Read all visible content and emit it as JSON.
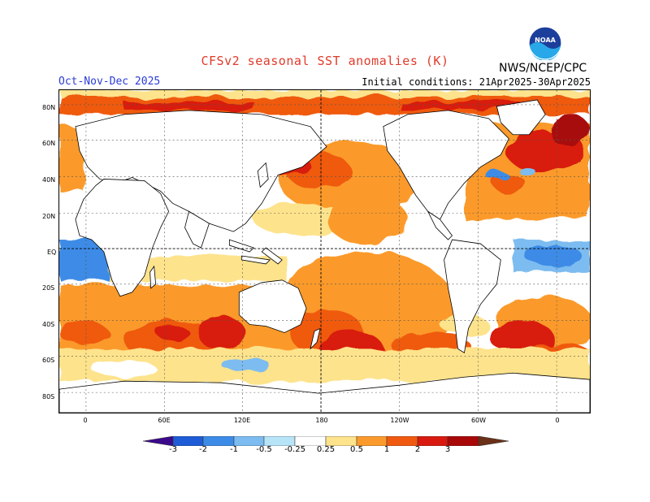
{
  "header": {
    "title": "CFSv2 seasonal SST anomalies (K)",
    "agency": "NWS/NCEP/CPC",
    "season": "Oct-Nov-Dec 2025",
    "initial_conditions": "Initial conditions: 21Apr2025-30Apr2025",
    "logo_text": "NOAA"
  },
  "map": {
    "lat_labels": [
      "80N",
      "60N",
      "40N",
      "20N",
      "EQ",
      "20S",
      "40S",
      "60S",
      "80S"
    ],
    "lon_labels": [
      "0",
      "60E",
      "120E",
      "180",
      "120W",
      "60W",
      "0"
    ]
  },
  "colorbar": {
    "labels": [
      "-3",
      "-2",
      "-1",
      "-0.5",
      "-0.25",
      "0.25",
      "0.5",
      "1",
      "2",
      "3"
    ],
    "colors": [
      "#3b0a8a",
      "#1e5bd6",
      "#3c8be6",
      "#7cbcf0",
      "#b8e4f8",
      "#ffffff",
      "#fde38c",
      "#fb9a2c",
      "#ef5a10",
      "#d81a10",
      "#a80808",
      "#6a3018"
    ]
  }
}
